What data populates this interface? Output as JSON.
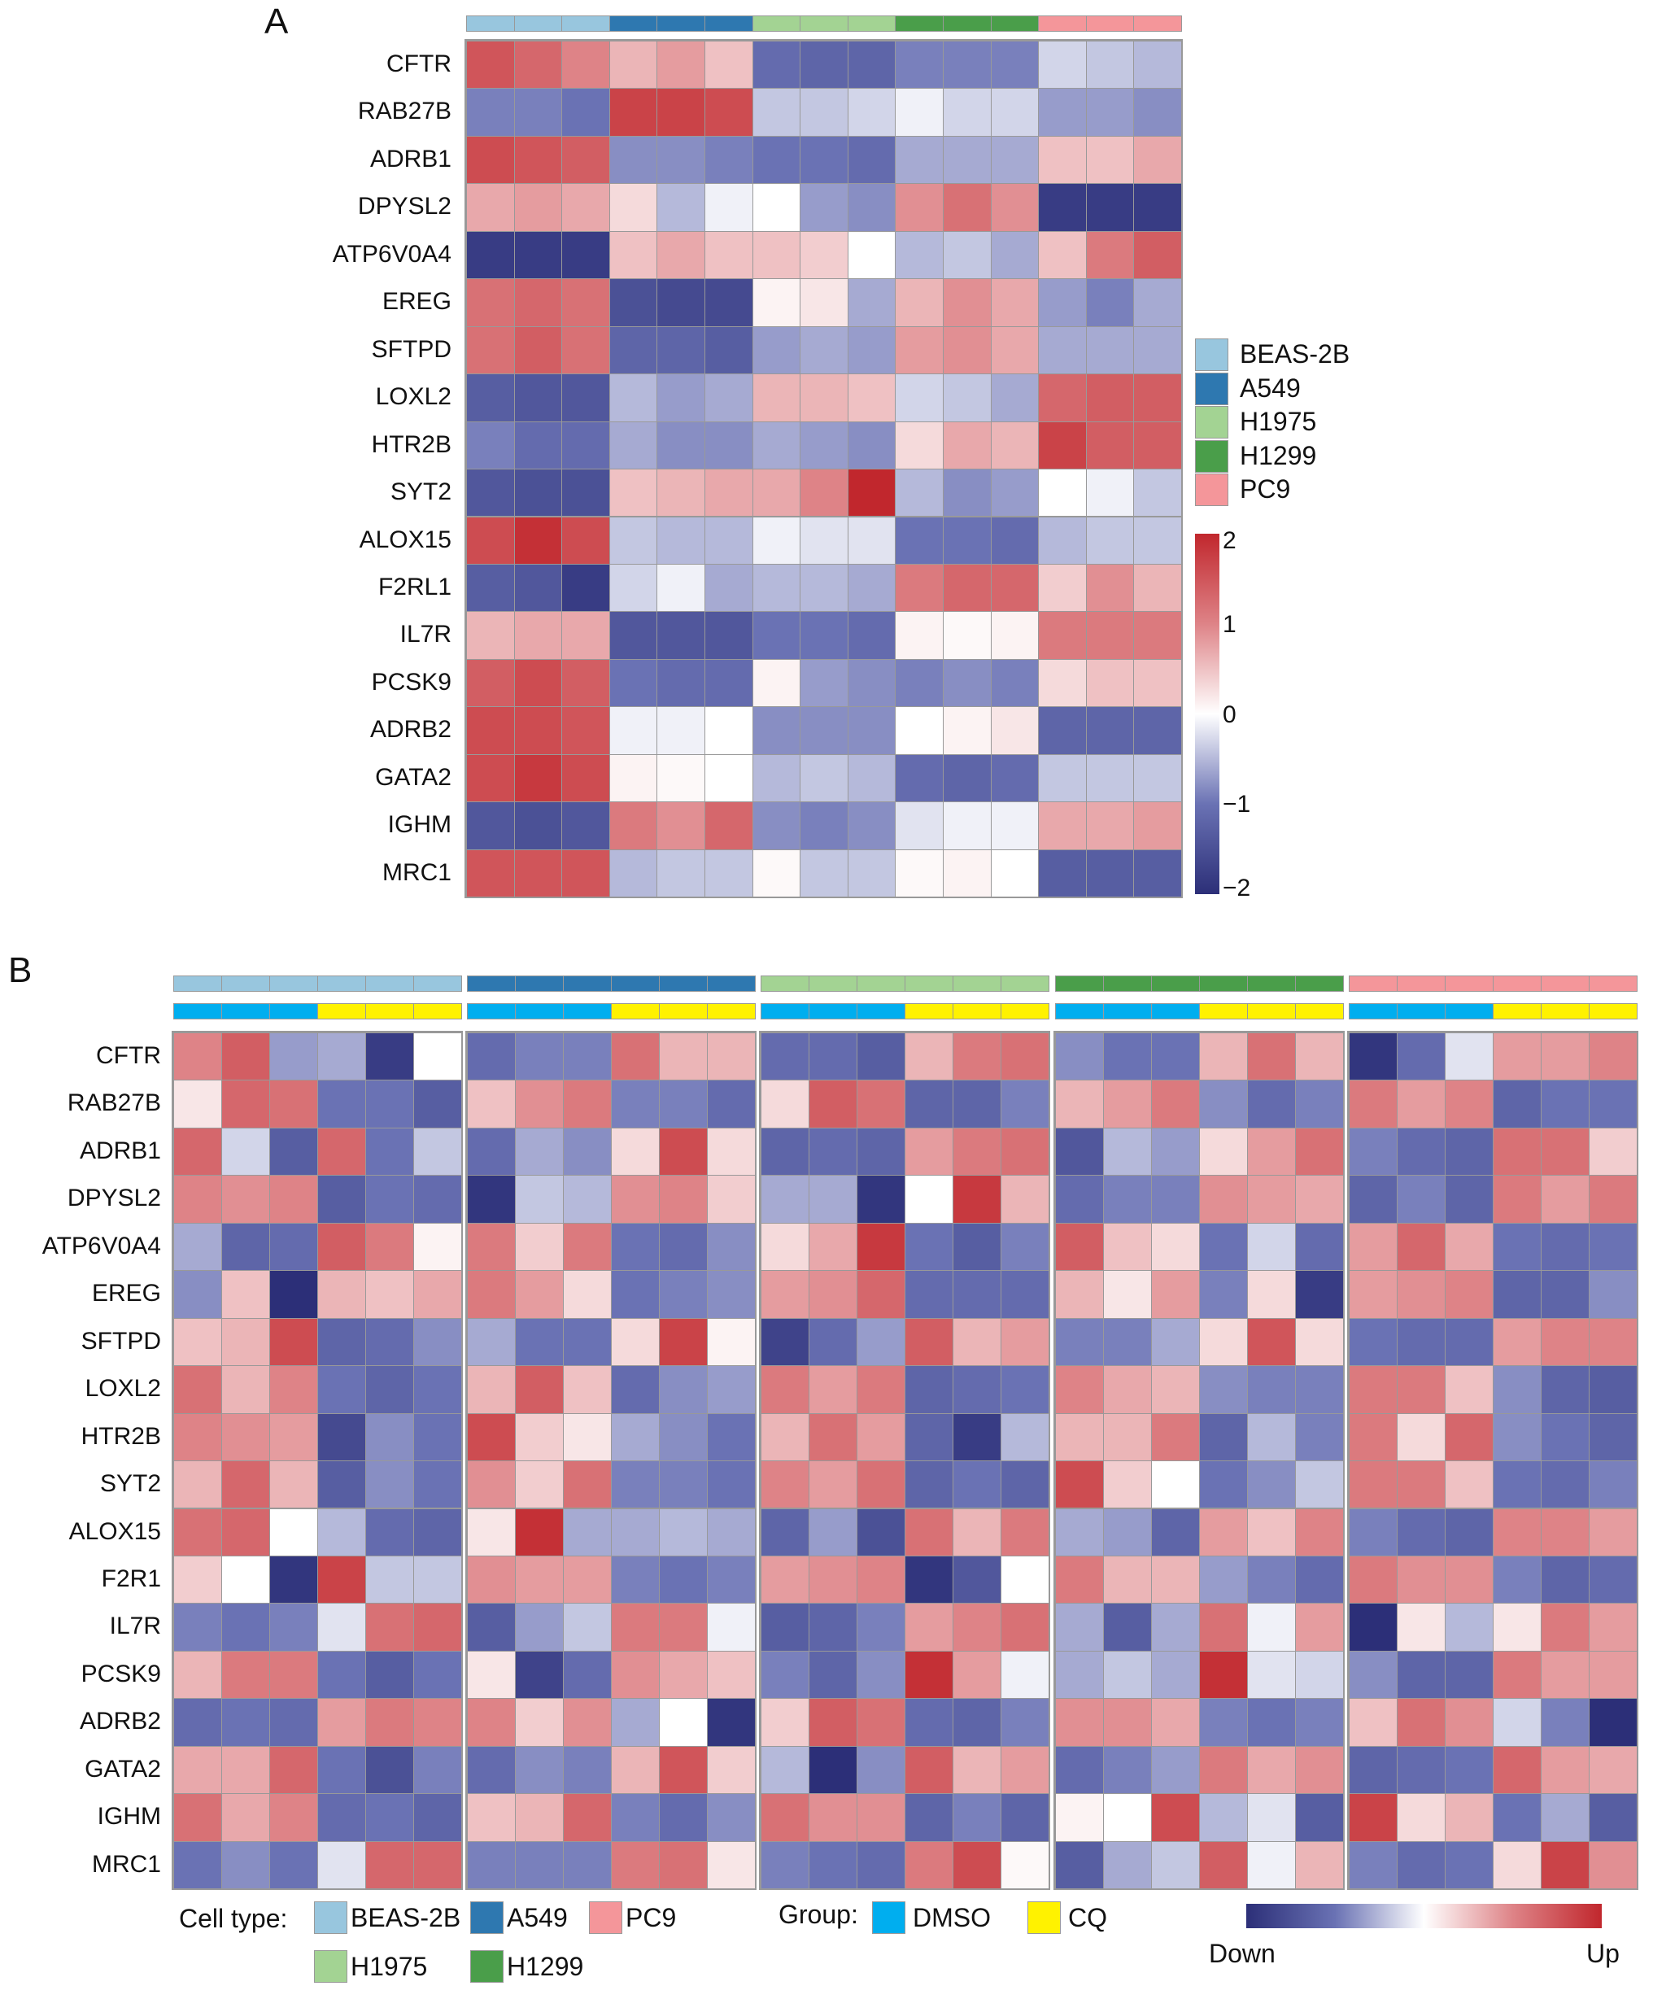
{
  "colors": {
    "cell_types": {
      "BEAS-2B": "#98c6de",
      "A549": "#2e78b0",
      "H1975": "#a3d393",
      "H1299": "#4a9e4a",
      "PC9": "#f4969a"
    },
    "groups": {
      "DMSO": "#00aeef",
      "CQ": "#fff200"
    },
    "scale": [
      [
        "-2",
        "#2c2f78"
      ],
      [
        "-1",
        "#6a72b4"
      ],
      [
        "0",
        "#ffffff"
      ],
      [
        "1",
        "#de8387"
      ],
      [
        "2",
        "#c1272d"
      ]
    ]
  },
  "chart_data": [
    {
      "type": "heatmap",
      "panel": "A",
      "title": "A",
      "rows": [
        "CFTR",
        "RAB27B",
        "ADRB1",
        "DPYSL2",
        "ATP6V0A4",
        "EREG",
        "SFTPD",
        "LOXL2",
        "HTR2B",
        "SYT2",
        "ALOX15",
        "F2RL1",
        "IL7R",
        "PCSK9",
        "ADRB2",
        "GATA2",
        "IGHM",
        "MRC1"
      ],
      "column_cell_types": [
        "BEAS-2B",
        "BEAS-2B",
        "BEAS-2B",
        "A549",
        "A549",
        "A549",
        "H1975",
        "H1975",
        "H1975",
        "H1299",
        "H1299",
        "H1299",
        "PC9",
        "PC9",
        "PC9"
      ],
      "values": [
        [
          1.5,
          1.3,
          1.0,
          0.6,
          0.8,
          0.5,
          -1.1,
          -1.2,
          -1.2,
          -0.9,
          -0.9,
          -0.9,
          -0.3,
          -0.4,
          -0.5
        ],
        [
          -0.9,
          -0.9,
          -1.0,
          1.7,
          1.7,
          1.6,
          -0.4,
          -0.4,
          -0.3,
          -0.1,
          -0.3,
          -0.3,
          -0.7,
          -0.7,
          -0.8
        ],
        [
          1.6,
          1.5,
          1.4,
          -0.8,
          -0.8,
          -0.9,
          -1.0,
          -1.0,
          -1.1,
          -0.6,
          -0.6,
          -0.6,
          0.5,
          0.5,
          0.7
        ],
        [
          0.7,
          0.8,
          0.7,
          0.3,
          -0.5,
          -0.1,
          0.0,
          -0.7,
          -0.8,
          0.9,
          1.2,
          0.9,
          -1.8,
          -1.8,
          -1.8
        ],
        [
          -1.8,
          -1.8,
          -1.8,
          0.5,
          0.7,
          0.5,
          0.5,
          0.4,
          0.0,
          -0.5,
          -0.4,
          -0.6,
          0.5,
          1.1,
          1.4
        ],
        [
          1.2,
          1.3,
          1.2,
          -1.5,
          -1.6,
          -1.6,
          0.1,
          0.2,
          -0.6,
          0.6,
          0.9,
          0.7,
          -0.7,
          -0.9,
          -0.6
        ],
        [
          1.2,
          1.4,
          1.2,
          -1.2,
          -1.2,
          -1.3,
          -0.7,
          -0.6,
          -0.7,
          0.8,
          0.9,
          0.7,
          -0.6,
          -0.6,
          -0.6
        ],
        [
          -1.3,
          -1.4,
          -1.4,
          -0.5,
          -0.7,
          -0.6,
          0.6,
          0.6,
          0.5,
          -0.3,
          -0.4,
          -0.6,
          1.3,
          1.4,
          1.4
        ],
        [
          -0.9,
          -1.1,
          -1.1,
          -0.6,
          -0.8,
          -0.8,
          -0.6,
          -0.7,
          -0.8,
          0.3,
          0.7,
          0.6,
          1.7,
          1.4,
          1.4
        ],
        [
          -1.4,
          -1.5,
          -1.5,
          0.5,
          0.6,
          0.7,
          0.7,
          1.0,
          2.0,
          -0.5,
          -0.8,
          -0.7,
          0.0,
          -0.1,
          -0.4
        ],
        [
          1.6,
          1.9,
          1.6,
          -0.4,
          -0.5,
          -0.5,
          -0.1,
          -0.2,
          -0.2,
          -1.0,
          -1.0,
          -1.1,
          -0.5,
          -0.4,
          -0.4
        ],
        [
          -1.3,
          -1.4,
          -1.8,
          -0.3,
          -0.1,
          -0.6,
          -0.5,
          -0.5,
          -0.6,
          1.1,
          1.3,
          1.3,
          0.4,
          0.9,
          0.6
        ],
        [
          0.6,
          0.7,
          0.7,
          -1.4,
          -1.4,
          -1.4,
          -1.0,
          -1.0,
          -1.1,
          0.1,
          0.05,
          0.1,
          1.1,
          1.1,
          1.1
        ],
        [
          1.4,
          1.6,
          1.4,
          -1.0,
          -1.1,
          -1.1,
          0.1,
          -0.7,
          -0.8,
          -0.9,
          -0.8,
          -0.9,
          0.3,
          0.5,
          0.5
        ],
        [
          1.6,
          1.6,
          1.5,
          -0.1,
          -0.1,
          0.0,
          -0.8,
          -0.8,
          -0.8,
          0.0,
          0.1,
          0.2,
          -1.2,
          -1.2,
          -1.2
        ],
        [
          1.6,
          1.8,
          1.6,
          0.1,
          0.05,
          0.0,
          -0.5,
          -0.4,
          -0.5,
          -1.1,
          -1.2,
          -1.1,
          -0.4,
          -0.4,
          -0.4
        ],
        [
          -1.4,
          -1.5,
          -1.4,
          1.1,
          0.9,
          1.3,
          -0.8,
          -0.9,
          -0.8,
          -0.2,
          -0.1,
          -0.1,
          0.7,
          0.7,
          0.8
        ],
        [
          1.5,
          1.5,
          1.5,
          -0.5,
          -0.4,
          -0.4,
          0.05,
          -0.4,
          -0.4,
          0.05,
          0.1,
          0.0,
          -1.3,
          -1.3,
          -1.3
        ]
      ],
      "legend": {
        "entries": [
          "BEAS-2B",
          "A549",
          "H1975",
          "H1299",
          "PC9"
        ],
        "placement": "right"
      },
      "colorbar": {
        "range": [
          -2,
          2
        ],
        "ticks": [
          "2",
          "1",
          "0",
          "−1",
          "−2"
        ]
      }
    },
    {
      "type": "heatmap",
      "panel": "B",
      "title": "B",
      "rows": [
        "CFTR",
        "RAB27B",
        "ADRB1",
        "DPYSL2",
        "ATP6V0A4",
        "EREG",
        "SFTPD",
        "LOXL2",
        "HTR2B",
        "SYT2",
        "ALOX15",
        "F2R1",
        "IL7R",
        "PCSK9",
        "ADRB2",
        "GATA2",
        "IGHM",
        "MRC1"
      ],
      "blocks": [
        "BEAS-2B",
        "A549",
        "H1975",
        "H1299",
        "PC9"
      ],
      "block_groups": [
        "DMSO",
        "DMSO",
        "DMSO",
        "CQ",
        "CQ",
        "CQ"
      ],
      "values": [
        [
          1.0,
          1.4,
          -0.7,
          -0.6,
          -1.8,
          0.0,
          -1.1,
          -0.9,
          -0.9,
          1.2,
          0.6,
          0.6,
          -1.1,
          -1.1,
          -1.3,
          0.6,
          1.1,
          1.2,
          -0.8,
          -1.0,
          -1.0,
          0.6,
          1.2,
          0.6,
          -1.9,
          -1.1,
          -0.2,
          0.8,
          0.8,
          1.0
        ],
        [
          0.2,
          1.3,
          1.2,
          -1.0,
          -1.0,
          -1.3,
          0.5,
          0.9,
          1.1,
          -0.9,
          -0.9,
          -1.1,
          0.3,
          1.4,
          1.2,
          -1.2,
          -1.2,
          -0.9,
          0.6,
          0.8,
          1.1,
          -0.8,
          -1.1,
          -0.9,
          1.1,
          0.8,
          1.0,
          -1.2,
          -1.0,
          -1.0
        ],
        [
          1.3,
          -0.3,
          -1.3,
          1.3,
          -1.0,
          -0.4,
          -1.1,
          -0.6,
          -0.8,
          0.3,
          1.6,
          0.3,
          -1.2,
          -1.1,
          -1.2,
          0.8,
          1.1,
          1.2,
          -1.4,
          -0.5,
          -0.7,
          0.3,
          0.8,
          1.2,
          -0.9,
          -1.1,
          -1.2,
          1.2,
          1.2,
          0.4
        ],
        [
          1.0,
          0.9,
          1.0,
          -1.3,
          -1.0,
          -1.1,
          -1.9,
          -0.4,
          -0.5,
          0.9,
          1.0,
          0.4,
          -0.6,
          -0.6,
          -1.9,
          0.0,
          1.8,
          0.6,
          -1.1,
          -0.9,
          -0.9,
          0.9,
          0.8,
          0.7,
          -1.2,
          -0.9,
          -1.2,
          1.1,
          0.8,
          1.1
        ],
        [
          -0.6,
          -1.2,
          -1.1,
          1.4,
          1.1,
          0.1,
          1.1,
          0.4,
          1.1,
          -1.0,
          -1.1,
          -0.8,
          0.3,
          0.7,
          1.8,
          -1.0,
          -1.3,
          -0.9,
          1.4,
          0.5,
          0.3,
          -1.0,
          -0.3,
          -1.1,
          0.8,
          1.3,
          0.7,
          -1.0,
          -1.1,
          -1.0
        ],
        [
          -0.8,
          0.5,
          -2.0,
          0.6,
          0.5,
          0.7,
          1.1,
          0.8,
          0.3,
          -1.0,
          -0.9,
          -0.8,
          0.8,
          0.9,
          1.3,
          -1.1,
          -1.1,
          -1.1,
          0.6,
          0.2,
          0.8,
          -0.9,
          0.3,
          -1.8,
          0.8,
          0.9,
          1.0,
          -1.2,
          -1.2,
          -0.8
        ],
        [
          0.5,
          0.6,
          1.6,
          -1.2,
          -1.1,
          -0.8,
          -0.6,
          -1.0,
          -1.0,
          0.3,
          1.7,
          0.1,
          -1.7,
          -1.1,
          -0.7,
          1.4,
          0.6,
          0.8,
          -0.9,
          -0.9,
          -0.6,
          0.3,
          1.5,
          0.3,
          -1.0,
          -1.1,
          -1.1,
          0.8,
          1.0,
          1.0
        ],
        [
          1.2,
          0.6,
          1.0,
          -1.0,
          -1.2,
          -1.0,
          0.6,
          1.4,
          0.5,
          -1.1,
          -0.8,
          -0.7,
          1.1,
          0.8,
          1.1,
          -1.2,
          -1.1,
          -1.0,
          1.0,
          0.7,
          0.6,
          -0.8,
          -0.9,
          -0.9,
          1.1,
          1.1,
          0.5,
          -0.8,
          -1.2,
          -1.3
        ],
        [
          1.0,
          0.9,
          0.8,
          -1.6,
          -0.8,
          -1.0,
          1.6,
          0.4,
          0.2,
          -0.6,
          -0.8,
          -1.0,
          0.6,
          1.2,
          0.8,
          -1.2,
          -1.8,
          -0.5,
          0.6,
          0.6,
          1.1,
          -1.2,
          -0.5,
          -0.9,
          1.1,
          0.3,
          1.3,
          -0.8,
          -1.0,
          -1.2
        ],
        [
          0.6,
          1.3,
          0.6,
          -1.3,
          -0.8,
          -1.0,
          0.9,
          0.4,
          1.2,
          -0.9,
          -0.9,
          -1.0,
          1.0,
          0.8,
          1.2,
          -1.2,
          -1.0,
          -1.2,
          1.6,
          0.4,
          0.0,
          -1.0,
          -0.8,
          -0.4,
          1.1,
          1.1,
          0.5,
          -1.0,
          -1.1,
          -0.9
        ],
        [
          1.2,
          1.3,
          0.0,
          -0.5,
          -1.1,
          -1.2,
          0.2,
          1.9,
          -0.6,
          -0.6,
          -0.5,
          -0.6,
          -1.2,
          -0.7,
          -1.5,
          1.2,
          0.6,
          1.1,
          -0.6,
          -0.7,
          -1.2,
          0.8,
          0.5,
          1.0,
          -0.9,
          -1.1,
          -1.2,
          1.0,
          1.0,
          0.8
        ],
        [
          0.4,
          0.0,
          -1.9,
          1.7,
          -0.4,
          -0.4,
          0.9,
          0.8,
          0.8,
          -0.9,
          -1.0,
          -0.9,
          0.8,
          0.9,
          1.0,
          -1.9,
          -1.4,
          0.0,
          1.1,
          0.6,
          0.6,
          -0.7,
          -0.9,
          -1.1,
          1.1,
          0.9,
          0.9,
          -0.9,
          -1.2,
          -1.1
        ],
        [
          -0.9,
          -1.0,
          -0.9,
          -0.2,
          1.2,
          1.3,
          -1.3,
          -0.7,
          -0.4,
          1.1,
          1.1,
          -0.1,
          -1.3,
          -1.2,
          -0.9,
          0.8,
          1.0,
          1.2,
          -0.6,
          -1.3,
          -0.6,
          1.2,
          -0.1,
          0.8,
          -2.0,
          0.2,
          -0.5,
          0.2,
          1.1,
          0.8
        ],
        [
          0.6,
          1.1,
          1.1,
          -1.0,
          -1.3,
          -1.0,
          0.2,
          -1.7,
          -1.1,
          0.9,
          0.7,
          0.5,
          -0.9,
          -1.2,
          -0.8,
          1.9,
          0.8,
          -0.1,
          -0.6,
          -0.4,
          -0.6,
          1.9,
          -0.2,
          -0.3,
          -0.8,
          -1.2,
          -1.2,
          1.1,
          0.8,
          0.8
        ],
        [
          -1.1,
          -1.0,
          -1.1,
          0.8,
          1.1,
          1.0,
          1.0,
          0.4,
          0.9,
          -0.6,
          0.0,
          -1.9,
          0.4,
          1.4,
          1.2,
          -1.1,
          -1.2,
          -0.9,
          0.9,
          0.9,
          0.7,
          -0.9,
          -1.0,
          -0.9,
          0.5,
          1.2,
          0.9,
          -0.3,
          -0.9,
          -2.0
        ],
        [
          0.7,
          0.7,
          1.3,
          -1.0,
          -1.5,
          -0.9,
          -1.1,
          -0.8,
          -0.9,
          0.6,
          1.5,
          0.4,
          -0.5,
          -2.0,
          -0.8,
          1.4,
          0.6,
          0.8,
          -1.1,
          -0.9,
          -0.7,
          1.1,
          0.7,
          0.9,
          -1.2,
          -1.1,
          -1.0,
          1.3,
          0.8,
          0.7
        ],
        [
          1.2,
          0.7,
          1.0,
          -1.1,
          -1.0,
          -1.2,
          0.5,
          0.6,
          1.3,
          -0.9,
          -1.1,
          -0.8,
          1.2,
          0.9,
          0.9,
          -1.2,
          -0.9,
          -1.2,
          0.1,
          0.0,
          1.6,
          -0.5,
          -0.2,
          -1.3,
          1.7,
          0.3,
          0.6,
          -1.0,
          -0.6,
          -1.3
        ],
        [
          -1.0,
          -0.8,
          -1.0,
          -0.2,
          1.3,
          1.3,
          -0.9,
          -0.9,
          -0.9,
          1.1,
          1.2,
          0.2,
          -0.9,
          -1.0,
          -1.1,
          1.1,
          1.6,
          0.05,
          -1.3,
          -0.6,
          -0.4,
          1.4,
          -0.1,
          0.6,
          -0.9,
          -1.1,
          -1.0,
          0.3,
          1.7,
          0.9
        ]
      ],
      "legend": {
        "cell_type_label": "Cell type:",
        "cell_types": [
          "BEAS-2B",
          "A549",
          "PC9",
          "H1975",
          "H1299"
        ],
        "group_label": "Group:",
        "groups": [
          "DMSO",
          "CQ"
        ],
        "scale_low": "Down",
        "scale_high": "Up",
        "placement": "bottom"
      }
    }
  ]
}
